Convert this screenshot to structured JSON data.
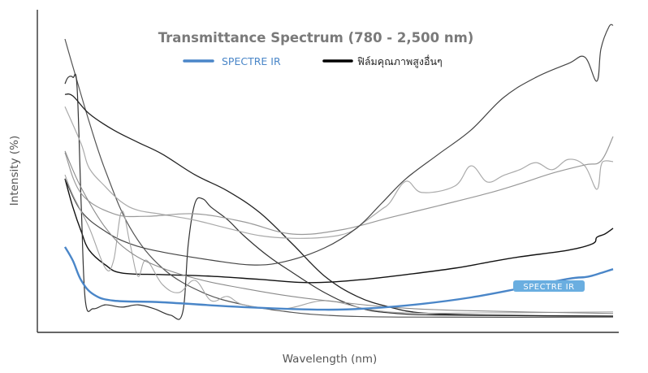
{
  "chart_data": {
    "type": "line",
    "title": "Transmittance Spectrum (780 - 2,500 nm)",
    "xlabel": "Wavelength (nm)",
    "ylabel": "Intensity (%)",
    "xlim": [
      780,
      2500
    ],
    "ylim": [
      0,
      100
    ],
    "grid": false,
    "legend_position": "top-center",
    "legend": [
      {
        "label": "SPECTRE IR",
        "color": "#4a86c8"
      },
      {
        "label": "ฟิล์มคุณภาพสูงอื่นๆ",
        "color": "#000000"
      }
    ],
    "annotation": {
      "text": "SPECTRE IR",
      "x": 2230,
      "y": 14.5,
      "color": "#6aaee0"
    },
    "series": [
      {
        "name": "SPECTRE IR",
        "color": "#4a86c8",
        "width": 2.4,
        "x": [
          780,
          805,
          831,
          869,
          933,
          1086,
          1341,
          1595,
          1748,
          1901,
          2054,
          2207,
          2360,
          2411,
          2436,
          2462,
          2500
        ],
        "y": [
          26.3,
          22.0,
          15.9,
          11.6,
          9.6,
          9.1,
          7.6,
          6.8,
          7.3,
          8.6,
          10.6,
          13.4,
          16.4,
          16.9,
          17.4,
          18.2,
          19.4
        ]
      },
      {
        "name": "ฟิล์มคุณภาพสูงอื่นๆ 1",
        "color": "#111111",
        "width": 1.4,
        "x": [
          780,
          805,
          831,
          856,
          907,
          958,
          1086,
          1239,
          1392,
          1544,
          1697,
          1850,
          2003,
          2105,
          2207,
          2360,
          2436,
          2449,
          2474,
          2500
        ],
        "y": [
          47.5,
          38.6,
          31.1,
          25.3,
          20.7,
          18.2,
          17.7,
          17.2,
          16.2,
          15.2,
          16.0,
          17.7,
          19.7,
          21.5,
          23.2,
          25.3,
          27.3,
          29.3,
          30.3,
          32.1
        ]
      },
      {
        "name": "ฟิล์มคุณภาพสูงอื่นๆ 2",
        "color": "#555555",
        "width": 1.2,
        "x": [
          780,
          805,
          856,
          907,
          984,
          1086,
          1213,
          1341,
          1468,
          1595,
          1850,
          2500
        ],
        "y": [
          90.9,
          82.3,
          65.2,
          50.0,
          32.3,
          19.7,
          12.1,
          8.3,
          6.3,
          5.1,
          4.5,
          4.5
        ]
      },
      {
        "name": "ฟิล์มคุณภาพสูงอื่นๆ 3",
        "color": "#333333",
        "width": 1.2,
        "x": [
          780,
          790,
          805,
          818,
          831,
          844,
          869,
          907,
          958,
          1009,
          1060,
          1111,
          1149,
          1167,
          1188,
          1213,
          1239,
          1290,
          1341,
          1417,
          1493,
          1595,
          1697,
          1799,
          1978,
          2500
        ],
        "y": [
          77.0,
          79.0,
          79.0,
          76.0,
          39.4,
          9.6,
          7.1,
          8.3,
          7.6,
          8.3,
          7.1,
          5.1,
          5.8,
          27.3,
          39.9,
          41.2,
          38.6,
          34.8,
          29.8,
          23.5,
          18.4,
          12.1,
          7.6,
          5.8,
          5.1,
          4.8
        ]
      },
      {
        "name": "ฟิล์มคุณภาพสูงอื่นๆ 4",
        "color": "#222222",
        "width": 1.3,
        "x": [
          780,
          805,
          856,
          933,
          1009,
          1086,
          1188,
          1290,
          1392,
          1493,
          1595,
          1697,
          1799,
          1901,
          2105,
          2500
        ],
        "y": [
          73.7,
          73.2,
          67.7,
          62.6,
          58.8,
          55.1,
          48.7,
          43.7,
          36.9,
          27.3,
          17.2,
          10.9,
          7.6,
          5.8,
          5.1,
          4.8
        ]
      },
      {
        "name": "ฟิล์มคุณภาพสูงอื่นๆ 5",
        "color": "#aaaaaa",
        "width": 1.2,
        "x": [
          780,
          831,
          856,
          907,
          958,
          1009,
          1086,
          1188,
          1290,
          1392,
          1493,
          1595,
          1672,
          1723,
          1774,
          1799,
          1850,
          1901,
          2003,
          2054,
          2105,
          2156,
          2207,
          2258,
          2309,
          2360,
          2411,
          2449,
          2462,
          2474,
          2500
        ],
        "y": [
          69.9,
          58.3,
          50.8,
          45.0,
          40.2,
          37.7,
          36.4,
          34.6,
          32.1,
          29.8,
          29.0,
          29.3,
          30.8,
          34.3,
          38.0,
          40.0,
          46.7,
          43.2,
          45.2,
          51.5,
          46.5,
          48.5,
          50.3,
          52.5,
          50.3,
          53.5,
          51.5,
          44.2,
          51.5,
          53.0,
          52.8
        ]
      },
      {
        "name": "ฟิล์มคุณภาพสูงอื่นๆ 6",
        "color": "#999999",
        "width": 1.2,
        "x": [
          780,
          831,
          933,
          1035,
          1188,
          1341,
          1493,
          1646,
          1799,
          1952,
          2105,
          2207,
          2309,
          2411,
          2462,
          2500
        ],
        "y": [
          55.6,
          42.9,
          36.6,
          35.8,
          36.6,
          34.1,
          30.3,
          31.6,
          35.4,
          39.1,
          42.9,
          45.9,
          49.2,
          51.8,
          53.0,
          60.6
        ]
      },
      {
        "name": "ฟิล์มคุณภาพสูงอื่นๆ 7",
        "color": "#444444",
        "width": 1.2,
        "x": [
          780,
          831,
          907,
          984,
          1086,
          1239,
          1366,
          1468,
          1595,
          1697,
          1774,
          1850,
          1952,
          2054,
          2156,
          2258,
          2360,
          2411,
          2449,
          2462,
          2487,
          2500
        ],
        "y": [
          47.5,
          37.4,
          31.1,
          27.3,
          24.7,
          22.2,
          20.7,
          21.7,
          26.0,
          32.3,
          39.9,
          47.5,
          55.1,
          62.6,
          72.7,
          79.0,
          83.3,
          85.3,
          77.8,
          87.9,
          94.7,
          95.2
        ]
      },
      {
        "name": "ฟิล์มคุณภาพสูงอื่นๆ 8",
        "color": "#a5a5a5",
        "width": 1.1,
        "x": [
          780,
          805,
          856,
          907,
          933,
          958,
          984,
          1009,
          1035,
          1086,
          1137,
          1188,
          1239,
          1290,
          1341,
          1468,
          1595,
          1723,
          1850,
          2105,
          2500
        ],
        "y": [
          48.7,
          42.4,
          32.3,
          19.7,
          22.2,
          37.4,
          27.3,
          17.2,
          22.2,
          14.6,
          12.1,
          15.9,
          9.6,
          10.9,
          8.3,
          7.1,
          9.6,
          7.1,
          5.8,
          5.8,
          6.1
        ]
      },
      {
        "name": "ฟิล์มคุณภาพสูงอื่นๆ 9",
        "color": "#8a8a8a",
        "width": 1.1,
        "x": [
          780,
          831,
          907,
          984,
          1086,
          1213,
          1341,
          1493,
          1646,
          1799,
          2003,
          2500
        ],
        "y": [
          56.1,
          44.7,
          32.3,
          24.7,
          19.7,
          15.9,
          13.4,
          10.9,
          9.1,
          7.6,
          6.6,
          5.6
        ]
      }
    ]
  }
}
